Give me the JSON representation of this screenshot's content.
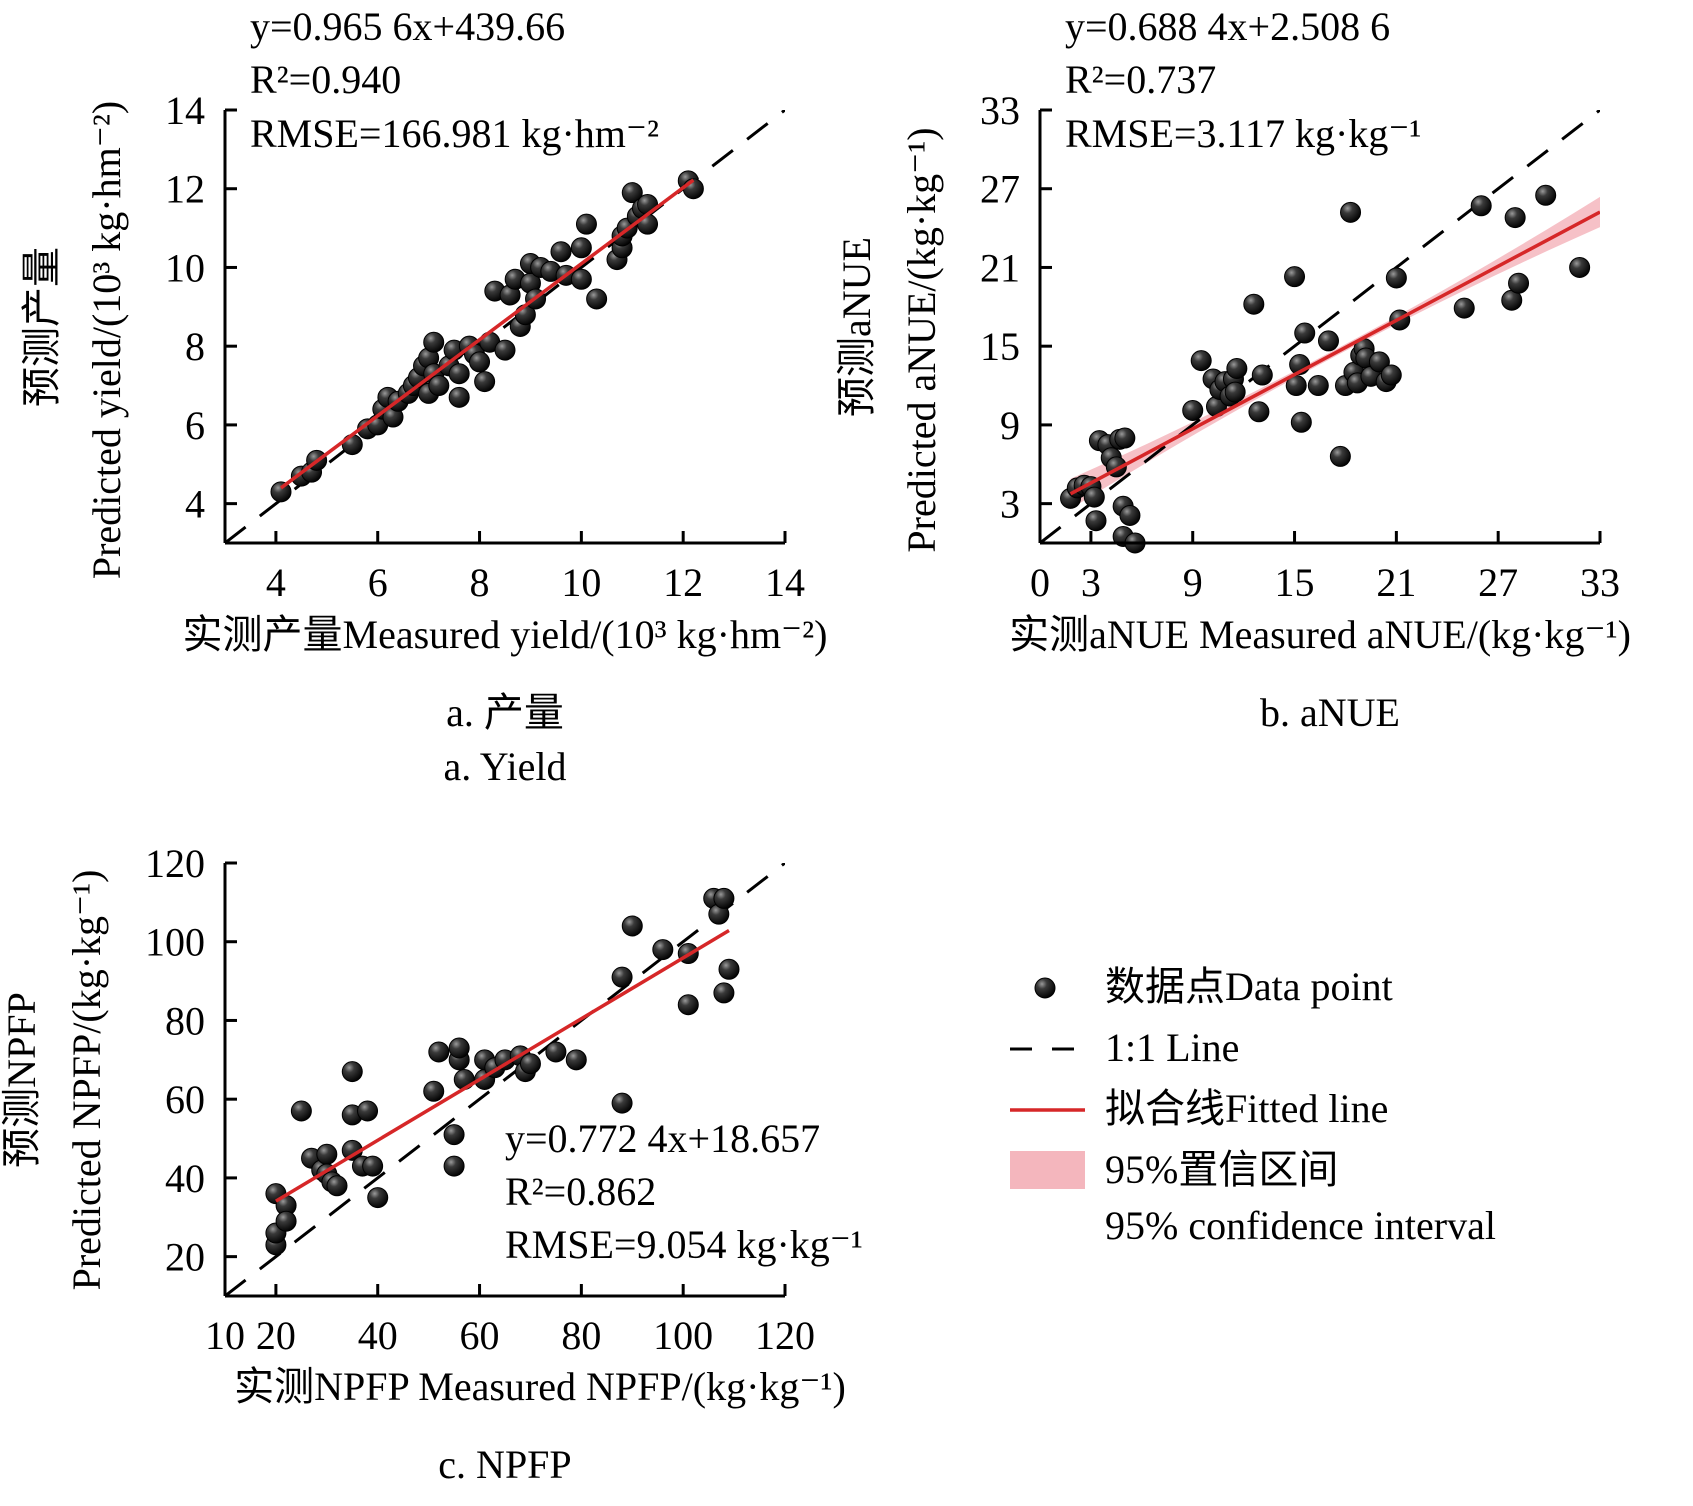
{
  "chart_data": [
    {
      "id": "a",
      "type": "scatter",
      "caption_zh": "a. 产量",
      "caption_en": "a. Yield",
      "xlabel": "实测产量Measured yield/(10³ kg·hm⁻²)",
      "ylabel_zh": "预测产量",
      "ylabel_en": "Predicted yield/(10³ kg·hm⁻²)",
      "xlim": [
        3,
        14
      ],
      "ylim": [
        3,
        14
      ],
      "xticks": [
        4,
        6,
        8,
        10,
        12,
        14
      ],
      "yticks": [
        4,
        6,
        8,
        10,
        12,
        14
      ],
      "equation": "y=0.965 6x+439.66",
      "r2": "R²=0.940",
      "rmse": "RMSE=166.981 kg·hm⁻²",
      "annotation_position": "top-left",
      "fit": {
        "slope": 0.9656,
        "intercept": 0.43966,
        "x_range": [
          4.1,
          12.2
        ]
      },
      "points": [
        [
          4.1,
          4.3
        ],
        [
          4.5,
          4.7
        ],
        [
          4.7,
          4.8
        ],
        [
          4.8,
          5.1
        ],
        [
          5.5,
          5.5
        ],
        [
          5.8,
          5.9
        ],
        [
          6.0,
          6.0
        ],
        [
          6.1,
          6.4
        ],
        [
          6.2,
          6.7
        ],
        [
          6.3,
          6.2
        ],
        [
          6.4,
          6.6
        ],
        [
          6.6,
          6.8
        ],
        [
          6.7,
          7.0
        ],
        [
          6.8,
          7.2
        ],
        [
          6.9,
          7.5
        ],
        [
          7.0,
          6.8
        ],
        [
          7.0,
          7.7
        ],
        [
          7.1,
          8.1
        ],
        [
          7.1,
          7.3
        ],
        [
          7.2,
          7.0
        ],
        [
          7.4,
          7.5
        ],
        [
          7.5,
          7.9
        ],
        [
          7.6,
          7.3
        ],
        [
          7.6,
          6.7
        ],
        [
          7.8,
          8.0
        ],
        [
          7.9,
          7.8
        ],
        [
          8.0,
          7.6
        ],
        [
          8.1,
          7.1
        ],
        [
          8.2,
          8.1
        ],
        [
          8.3,
          9.4
        ],
        [
          8.5,
          7.9
        ],
        [
          8.6,
          9.3
        ],
        [
          8.7,
          9.7
        ],
        [
          8.8,
          8.5
        ],
        [
          8.9,
          8.8
        ],
        [
          9.0,
          9.6
        ],
        [
          9.0,
          10.1
        ],
        [
          9.1,
          9.2
        ],
        [
          9.2,
          10.0
        ],
        [
          9.4,
          9.9
        ],
        [
          9.6,
          10.4
        ],
        [
          9.7,
          9.8
        ],
        [
          10.0,
          10.5
        ],
        [
          10.1,
          11.1
        ],
        [
          10.0,
          9.7
        ],
        [
          10.3,
          9.2
        ],
        [
          10.7,
          10.2
        ],
        [
          10.8,
          10.5
        ],
        [
          10.8,
          10.8
        ],
        [
          10.9,
          11.0
        ],
        [
          11.0,
          11.9
        ],
        [
          11.1,
          11.3
        ],
        [
          11.2,
          11.5
        ],
        [
          11.3,
          11.6
        ],
        [
          11.3,
          11.1
        ],
        [
          12.1,
          12.2
        ],
        [
          12.2,
          12.0
        ]
      ]
    },
    {
      "id": "b",
      "type": "scatter",
      "caption_zh": "b. aNUE",
      "xlabel": "实测aNUE Measured aNUE/(kg·kg⁻¹)",
      "ylabel_zh": "预测aNUE",
      "ylabel_en": "Predicted aNUE/(kg·kg⁻¹)",
      "xlim": [
        0,
        33
      ],
      "ylim": [
        0,
        33
      ],
      "xticks": [
        0,
        3,
        9,
        15,
        21,
        27,
        33
      ],
      "yticks": [
        3,
        9,
        15,
        21,
        27,
        33
      ],
      "equation": "y=0.688 4x+2.508 6",
      "r2": "R²=0.737",
      "rmse": "RMSE=3.117 kg·kg⁻¹",
      "annotation_position": "top-left",
      "fit": {
        "slope": 0.6884,
        "intercept": 2.5086,
        "x_range": [
          1.8,
          33
        ]
      },
      "confidence_band": true,
      "points": [
        [
          1.8,
          3.4
        ],
        [
          2.2,
          4.2
        ],
        [
          2.6,
          4.4
        ],
        [
          3.0,
          4.3
        ],
        [
          3.2,
          3.5
        ],
        [
          3.3,
          1.7
        ],
        [
          3.5,
          7.8
        ],
        [
          4.0,
          7.5
        ],
        [
          4.2,
          6.5
        ],
        [
          4.5,
          5.8
        ],
        [
          4.7,
          7.9
        ],
        [
          4.9,
          2.8
        ],
        [
          5.0,
          8.0
        ],
        [
          4.9,
          0.5
        ],
        [
          5.3,
          2.1
        ],
        [
          5.6,
          0.0
        ],
        [
          9.0,
          10.1
        ],
        [
          9.5,
          13.9
        ],
        [
          10.2,
          12.5
        ],
        [
          10.4,
          10.4
        ],
        [
          10.6,
          11.7
        ],
        [
          10.9,
          12.3
        ],
        [
          11.2,
          11.2
        ],
        [
          11.4,
          12.5
        ],
        [
          11.6,
          13.3
        ],
        [
          11.5,
          11.5
        ],
        [
          12.6,
          18.2
        ],
        [
          12.9,
          10.0
        ],
        [
          13.1,
          12.8
        ],
        [
          15.0,
          20.3
        ],
        [
          15.1,
          12.0
        ],
        [
          15.3,
          13.6
        ],
        [
          15.4,
          9.2
        ],
        [
          15.6,
          16.0
        ],
        [
          16.4,
          12.0
        ],
        [
          17.0,
          15.4
        ],
        [
          17.7,
          6.6
        ],
        [
          18.0,
          12.0
        ],
        [
          18.3,
          25.2
        ],
        [
          18.5,
          13.0
        ],
        [
          18.7,
          12.2
        ],
        [
          18.9,
          14.3
        ],
        [
          19.1,
          14.8
        ],
        [
          19.2,
          14.1
        ],
        [
          19.5,
          12.7
        ],
        [
          20.0,
          13.8
        ],
        [
          20.4,
          12.3
        ],
        [
          20.7,
          12.8
        ],
        [
          21.0,
          20.2
        ],
        [
          21.2,
          17.0
        ],
        [
          25.0,
          17.9
        ],
        [
          26.0,
          25.7
        ],
        [
          27.8,
          18.5
        ],
        [
          28.0,
          24.8
        ],
        [
          28.2,
          19.8
        ],
        [
          29.8,
          26.5
        ],
        [
          31.8,
          21.0
        ]
      ]
    },
    {
      "id": "c",
      "type": "scatter",
      "caption_zh": "c. NPFP",
      "xlabel": "实测NPFP Measured NPFP/(kg·kg⁻¹)",
      "ylabel_zh": "预测NPFP",
      "ylabel_en": "Predicted NPFP/(kg·kg⁻¹)",
      "xlim": [
        10,
        120
      ],
      "ylim": [
        10,
        120
      ],
      "xticks": [
        10,
        20,
        40,
        60,
        80,
        100,
        120
      ],
      "yticks": [
        20,
        40,
        60,
        80,
        100,
        120
      ],
      "equation": "y=0.772 4x+18.657",
      "r2": "R²=0.862",
      "rmse": "RMSE=9.054 kg·kg⁻¹",
      "annotation_position": "bottom-right",
      "fit": {
        "slope": 0.7724,
        "intercept": 18.657,
        "x_range": [
          20,
          109
        ]
      },
      "points": [
        [
          20,
          23
        ],
        [
          20,
          26
        ],
        [
          20,
          36
        ],
        [
          22,
          33
        ],
        [
          22,
          29
        ],
        [
          25,
          57
        ],
        [
          27,
          45
        ],
        [
          29,
          42
        ],
        [
          30,
          46
        ],
        [
          30,
          41
        ],
        [
          31,
          39
        ],
        [
          32,
          38
        ],
        [
          35,
          67
        ],
        [
          35,
          56
        ],
        [
          35,
          47
        ],
        [
          37,
          43
        ],
        [
          38,
          57
        ],
        [
          39,
          43
        ],
        [
          40,
          35
        ],
        [
          51,
          62
        ],
        [
          52,
          72
        ],
        [
          55,
          51
        ],
        [
          55,
          43
        ],
        [
          56,
          70
        ],
        [
          56,
          73
        ],
        [
          57,
          65
        ],
        [
          61,
          65
        ],
        [
          61,
          70
        ],
        [
          63,
          68
        ],
        [
          65,
          70
        ],
        [
          68,
          71
        ],
        [
          69,
          67
        ],
        [
          70,
          69
        ],
        [
          75,
          72
        ],
        [
          79,
          70
        ],
        [
          88,
          91
        ],
        [
          88,
          59
        ],
        [
          90,
          104
        ],
        [
          96,
          98
        ],
        [
          101,
          97
        ],
        [
          101,
          84
        ],
        [
          106,
          111
        ],
        [
          107,
          107
        ],
        [
          108,
          111
        ],
        [
          108,
          87
        ],
        [
          109,
          93
        ]
      ]
    }
  ],
  "legend": {
    "items": [
      {
        "kind": "point",
        "label": "数据点Data point"
      },
      {
        "kind": "dashed",
        "label": "1:1 Line"
      },
      {
        "kind": "fit",
        "label": "拟合线Fitted line"
      },
      {
        "kind": "band",
        "label": "95%置信区间",
        "label2": "95% confidence interval"
      }
    ]
  },
  "colors": {
    "point": "#1a1a1a",
    "fit_line": "#d62728",
    "band": "#f4b6bd",
    "reference_line": "#000000"
  }
}
